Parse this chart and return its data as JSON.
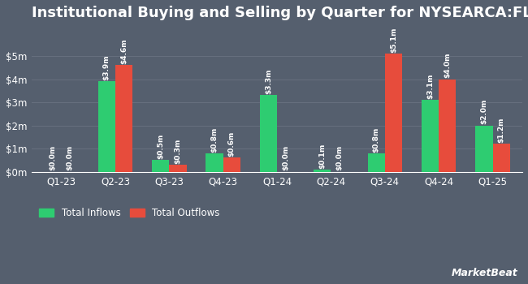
{
  "title": "Institutional Buying and Selling by Quarter for NYSEARCA:FLLA",
  "quarters": [
    "Q1-23",
    "Q2-23",
    "Q3-23",
    "Q4-23",
    "Q1-24",
    "Q2-24",
    "Q3-24",
    "Q4-24",
    "Q1-25"
  ],
  "inflows": [
    0.0,
    3.9,
    0.5,
    0.8,
    3.3,
    0.1,
    0.8,
    3.1,
    2.0
  ],
  "outflows": [
    0.0,
    4.6,
    0.3,
    0.6,
    0.0,
    0.0,
    5.1,
    4.0,
    1.2
  ],
  "inflow_labels": [
    "$0.0m",
    "$3.9m",
    "$0.5m",
    "$0.8m",
    "$3.3m",
    "$0.1m",
    "$0.8m",
    "$3.1m",
    "$2.0m"
  ],
  "outflow_labels": [
    "$0.0m",
    "$4.6m",
    "$0.3m",
    "$0.6m",
    "$0.0m",
    "$0.0m",
    "$5.1m",
    "$4.0m",
    "$1.2m"
  ],
  "inflow_color": "#2ecc71",
  "outflow_color": "#e74c3c",
  "bg_color": "#555f6e",
  "plot_bg_color": "#555f6e",
  "text_color": "#ffffff",
  "grid_color": "#666f7e",
  "ylabel_ticks": [
    "$0m",
    "$1m",
    "$2m",
    "$3m",
    "$4m",
    "$5m"
  ],
  "ytick_vals": [
    0,
    1,
    2,
    3,
    4,
    5
  ],
  "ylim": [
    0,
    6.2
  ],
  "bar_width": 0.32,
  "title_fontsize": 13,
  "label_fontsize": 6.5,
  "tick_fontsize": 8.5,
  "legend_fontsize": 8.5
}
